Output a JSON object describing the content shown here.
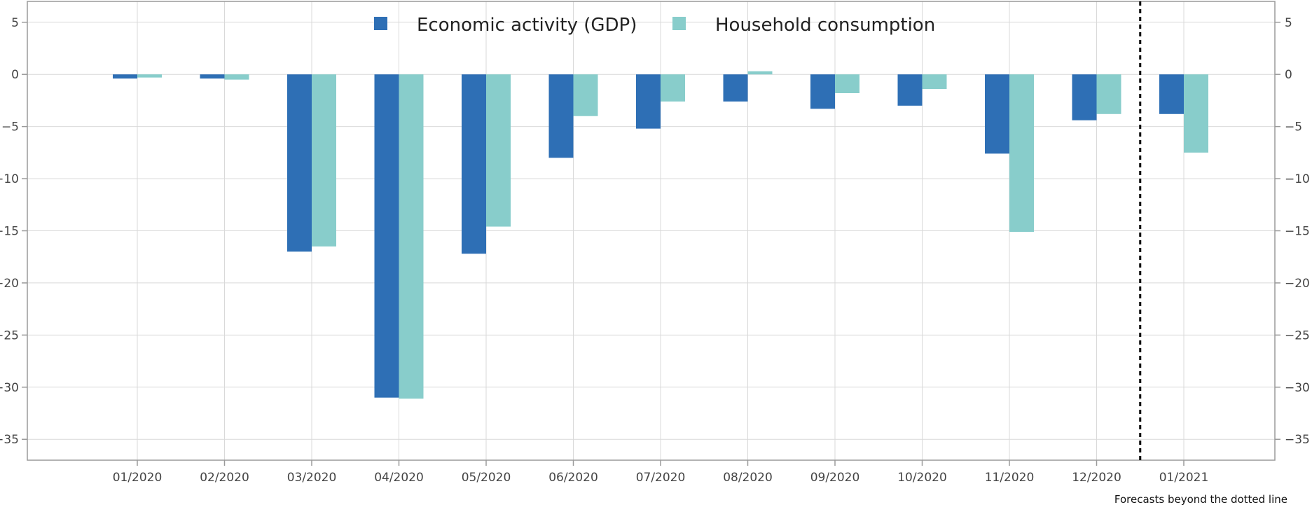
{
  "chart_data": {
    "type": "bar",
    "categories": [
      "01/2020",
      "02/2020",
      "03/2020",
      "04/2020",
      "05/2020",
      "06/2020",
      "07/2020",
      "08/2020",
      "09/2020",
      "10/2020",
      "11/2020",
      "12/2020",
      "01/2021"
    ],
    "series": [
      {
        "name": "Economic activity (GDP)",
        "color": "#2e6fb5",
        "values": [
          -0.4,
          -0.4,
          -17.0,
          -31.0,
          -17.2,
          -8.0,
          -5.2,
          -2.6,
          -3.3,
          -3.0,
          -7.6,
          -4.4,
          -3.8
        ]
      },
      {
        "name": "Household consumption",
        "color": "#88cdcb",
        "values": [
          -0.3,
          -0.5,
          -16.5,
          -31.1,
          -14.6,
          -4.0,
          -2.6,
          0.3,
          -1.8,
          -1.4,
          -15.1,
          -3.8,
          -7.5
        ]
      }
    ],
    "ylim": [
      -37,
      7
    ],
    "yticks": [
      5,
      0,
      -5,
      -10,
      -15,
      -20,
      -25,
      -30,
      -35
    ],
    "ytick_labels": [
      "5",
      "0",
      "−5",
      "−10",
      "−15",
      "−20",
      "−25",
      "−30",
      "−35"
    ],
    "grid": true,
    "legend_position": "top-center",
    "forecast_divider_after": "12/2020",
    "annotation": "Forecasts beyond the dotted line"
  }
}
